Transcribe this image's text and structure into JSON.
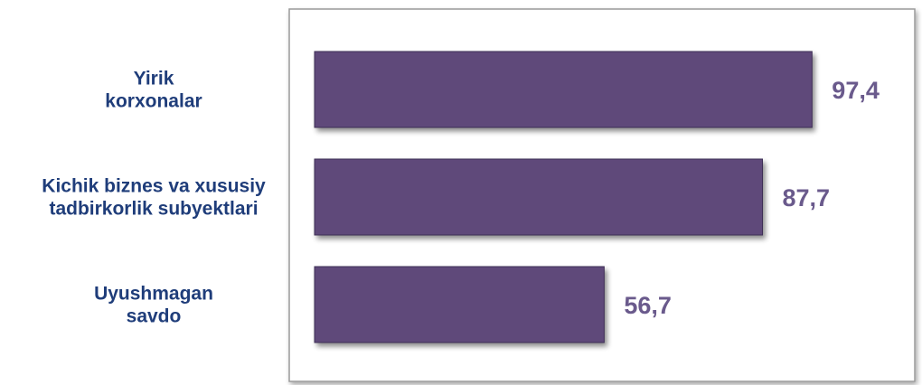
{
  "colors": {
    "bar": "#5f4a7a",
    "bar_edge": "#3e2e55",
    "category_text": "#1f3d7a",
    "value_text": "#6a5a8c",
    "plot_border": "#9a9a9a"
  },
  "chart_data": {
    "type": "bar",
    "orientation": "horizontal",
    "categories": [
      [
        "Yirik",
        "korxonalar"
      ],
      [
        "Kichik biznes va xususiy",
        "tadbirkorlik subyektlari"
      ],
      [
        "Uyushmagan",
        "savdo"
      ]
    ],
    "values": [
      97.4,
      87.7,
      56.7
    ],
    "value_labels": [
      "97,4",
      "87,7",
      "56,7"
    ],
    "xlim": [
      0,
      100
    ],
    "grid": false,
    "legend": "none"
  }
}
